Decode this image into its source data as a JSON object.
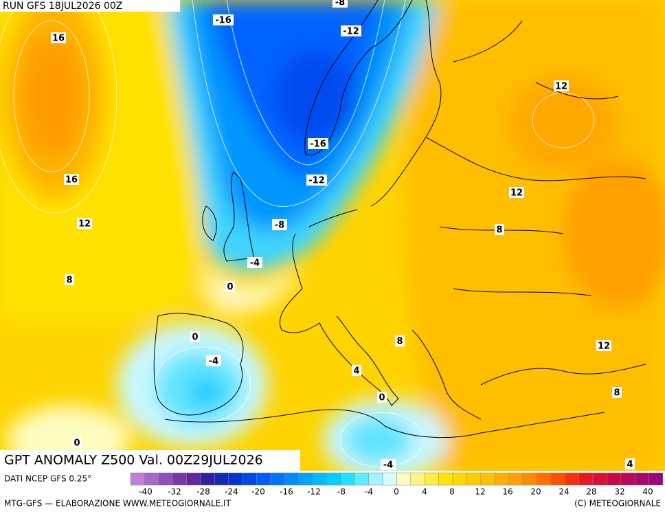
{
  "header": {
    "run": "RUN GFS 18JUL2026 00Z"
  },
  "map": {
    "contour_labels": [
      "-8",
      "-16",
      "-12",
      "16",
      "12",
      "-16",
      "-12",
      "16",
      "12",
      "12",
      "-8",
      "8",
      "-4",
      "8",
      "0",
      "0",
      "8",
      "12",
      "-4",
      "4",
      "0",
      "8",
      "0",
      "-4",
      "4"
    ]
  },
  "footer": {
    "title": "GPT ANOMALY Z500 Val. 00Z29JUL2026",
    "source": "DATI NCEP GFS 0.25°",
    "credit": "MTG-GFS — ELABORAZIONE WWW.METEOGIORNALE.IT",
    "copyright": "(C) METEOGIORNALE"
  },
  "colorbar": {
    "colors": [
      "#c080d8",
      "#a868c8",
      "#9050b8",
      "#7838a8",
      "#602898",
      "#3020a0",
      "#1428b8",
      "#0034d0",
      "#0048e8",
      "#005cf8",
      "#0074ff",
      "#008cff",
      "#00a4ff",
      "#00bcff",
      "#00d0ff",
      "#20e0ff",
      "#60ecff",
      "#a0f4ff",
      "#d8fcff",
      "#fffcc0",
      "#fff480",
      "#ffec40",
      "#ffe400",
      "#ffd800",
      "#ffcc00",
      "#ffc000",
      "#ffb000",
      "#ffa000",
      "#ff8c00",
      "#ff7000",
      "#ff5000",
      "#f83010",
      "#e81828",
      "#d81038",
      "#c80848",
      "#b80858",
      "#a80868",
      "#980878"
    ],
    "ticks": [
      -40,
      -32,
      -28,
      -24,
      -20,
      -16,
      -12,
      -8,
      -4,
      0,
      4,
      8,
      12,
      16,
      20,
      24,
      28,
      32,
      40
    ]
  }
}
